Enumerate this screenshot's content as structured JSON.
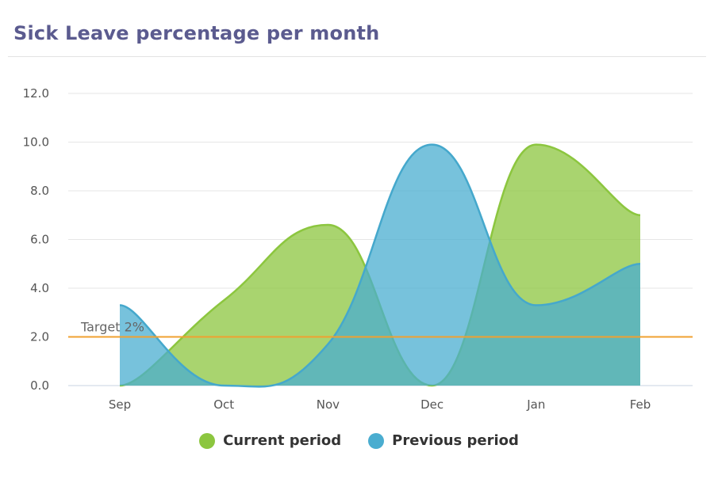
{
  "title": "Sick Leave percentage per month",
  "colors": {
    "current": "#8cc63f",
    "previous": "#4aadd0",
    "target": "#f0a030"
  },
  "chart_data": {
    "type": "area",
    "categories": [
      "Sep",
      "Oct",
      "Nov",
      "Dec",
      "Jan",
      "Feb"
    ],
    "series": [
      {
        "name": "Current period",
        "values": [
          0.0,
          3.5,
          6.6,
          0.0,
          9.9,
          7.0
        ]
      },
      {
        "name": "Previous period",
        "values": [
          3.3,
          0.0,
          1.7,
          9.9,
          3.3,
          5.0
        ]
      }
    ],
    "ylim": [
      0,
      12
    ],
    "yticks": [
      "0.0",
      "2.0",
      "4.0",
      "6.0",
      "8.0",
      "10.0",
      "12.0"
    ],
    "target": {
      "value": 2.0,
      "label": "Target 2%"
    },
    "grid": true,
    "legend": "bottom-center"
  },
  "legend": {
    "current_label": "Current period",
    "previous_label": "Previous period"
  }
}
